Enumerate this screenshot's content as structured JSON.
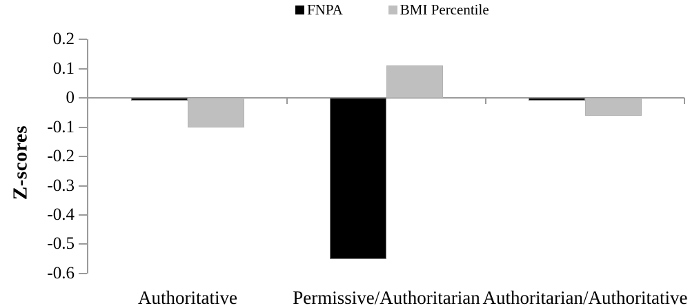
{
  "chart_data": {
    "type": "bar",
    "title": "",
    "ylabel": "Z-scores",
    "categories": [
      "Authoritative",
      "Permissive/Authoritarian",
      "Authoritarian/Authoritative"
    ],
    "series": [
      {
        "name": "FNPA",
        "color": "#000000",
        "border_color": "#7f7f7f",
        "values": [
          -0.01,
          -0.55,
          -0.01
        ]
      },
      {
        "name": "BMI Percentile",
        "color": "#bfbfbf",
        "border_color": "#b2b2b2",
        "values": [
          -0.1,
          0.11,
          -0.06
        ]
      }
    ],
    "ylim": [
      -0.6,
      0.2
    ],
    "ytick_step": 0.1,
    "ytick_labels": [
      "0.2",
      "0.1",
      "0",
      "-0.1",
      "-0.2",
      "-0.3",
      "-0.4",
      "-0.5",
      "-0.6"
    ],
    "legend_position": "top-center",
    "grid": false,
    "axis_color": "#9a9a9a",
    "background": "#ffffff"
  }
}
